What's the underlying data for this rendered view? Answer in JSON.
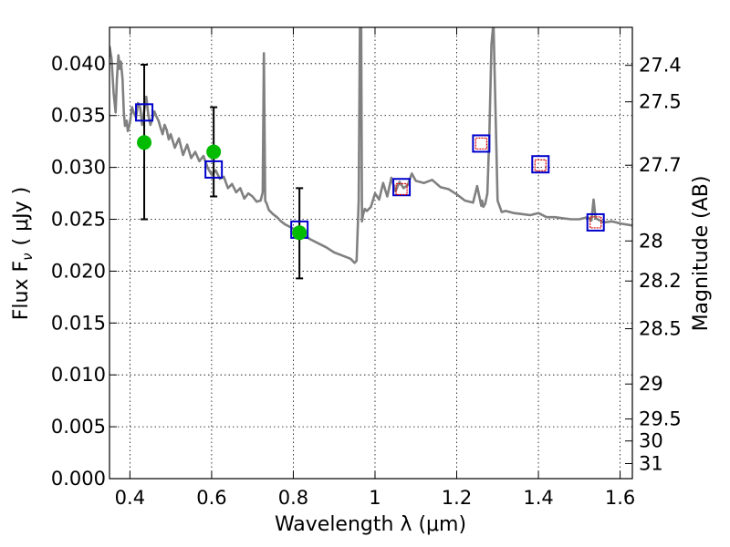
{
  "chart_data": {
    "type": "line",
    "title": "",
    "xlabel": "Wavelength  λ (μm)",
    "ylabel": "Flux  F",
    "ylabel_sub": "ν",
    "ylabel_unit": "( μJy )",
    "ylabel_right": "Magnitude (AB)",
    "xlim": [
      0.35,
      1.63
    ],
    "ylim": [
      0.0,
      0.0435
    ],
    "grid": true,
    "x_ticks": [
      0.4,
      0.6,
      0.8,
      1.0,
      1.2,
      1.4,
      1.6
    ],
    "x_tick_labels": [
      "0.4",
      "0.6",
      "0.8",
      "1",
      "1.2",
      "1.4",
      "1.6"
    ],
    "y_ticks": [
      0.0,
      0.005,
      0.01,
      0.015,
      0.02,
      0.025,
      0.03,
      0.035,
      0.04
    ],
    "y_tick_labels": [
      "0.000",
      "0.005",
      "0.010",
      "0.015",
      "0.020",
      "0.025",
      "0.030",
      "0.035",
      "0.040"
    ],
    "right_ticks": [
      {
        "label": "27.4",
        "flux": 0.03984
      },
      {
        "label": "27.5",
        "flux": 0.03632
      },
      {
        "label": "27.7",
        "flux": 0.03021
      },
      {
        "label": "28",
        "flux": 0.02291
      },
      {
        "label": "28.2",
        "flux": 0.01905
      },
      {
        "label": "28.5",
        "flux": 0.01445
      },
      {
        "label": "29",
        "flux": 0.00912
      },
      {
        "label": "29.5",
        "flux": 0.00575
      },
      {
        "label": "30",
        "flux": 0.00363
      },
      {
        "label": "31",
        "flux": 0.00145
      }
    ],
    "series": [
      {
        "role": "model-spectrum",
        "style": "line",
        "color": "#808080",
        "x": [
          0.35,
          0.355,
          0.36,
          0.365,
          0.368,
          0.372,
          0.375,
          0.378,
          0.382,
          0.385,
          0.388,
          0.392,
          0.395,
          0.4,
          0.405,
          0.41,
          0.415,
          0.42,
          0.425,
          0.43,
          0.435,
          0.44,
          0.445,
          0.45,
          0.455,
          0.46,
          0.465,
          0.47,
          0.475,
          0.48,
          0.485,
          0.49,
          0.495,
          0.5,
          0.51,
          0.52,
          0.53,
          0.54,
          0.55,
          0.56,
          0.57,
          0.58,
          0.59,
          0.6,
          0.61,
          0.62,
          0.63,
          0.64,
          0.65,
          0.66,
          0.67,
          0.68,
          0.69,
          0.7,
          0.71,
          0.72,
          0.725,
          0.728,
          0.731,
          0.735,
          0.74,
          0.75,
          0.76,
          0.77,
          0.78,
          0.79,
          0.8,
          0.82,
          0.84,
          0.86,
          0.88,
          0.9,
          0.92,
          0.94,
          0.95,
          0.955,
          0.96,
          0.963,
          0.966,
          0.968,
          0.971,
          0.975,
          0.98,
          0.99,
          1.0,
          1.01,
          1.02,
          1.03,
          1.04,
          1.05,
          1.06,
          1.07,
          1.08,
          1.09,
          1.1,
          1.12,
          1.14,
          1.16,
          1.18,
          1.2,
          1.22,
          1.24,
          1.25,
          1.26,
          1.262,
          1.265,
          1.27,
          1.275,
          1.28,
          1.285,
          1.29,
          1.3,
          1.31,
          1.32,
          1.34,
          1.36,
          1.38,
          1.4,
          1.42,
          1.44,
          1.46,
          1.48,
          1.5,
          1.52,
          1.53,
          1.535,
          1.54,
          1.55,
          1.56,
          1.58,
          1.6,
          1.63
        ],
        "y": [
          0.0417,
          0.0405,
          0.0372,
          0.0353,
          0.0385,
          0.0408,
          0.0395,
          0.0402,
          0.0385,
          0.0353,
          0.034,
          0.0345,
          0.0335,
          0.0343,
          0.0358,
          0.0352,
          0.0348,
          0.0362,
          0.0358,
          0.0341,
          0.0355,
          0.0368,
          0.0351,
          0.0341,
          0.0347,
          0.0354,
          0.0349,
          0.0345,
          0.0338,
          0.0332,
          0.0341,
          0.0336,
          0.0327,
          0.0332,
          0.0319,
          0.0328,
          0.0312,
          0.0322,
          0.0309,
          0.0315,
          0.0306,
          0.0311,
          0.03,
          0.0293,
          0.0297,
          0.0289,
          0.0291,
          0.028,
          0.0284,
          0.0276,
          0.028,
          0.027,
          0.0275,
          0.0272,
          0.0267,
          0.0268,
          0.0276,
          0.041,
          0.0268,
          0.0265,
          0.0259,
          0.0255,
          0.0252,
          0.0248,
          0.0245,
          0.0243,
          0.0241,
          0.0236,
          0.0231,
          0.0227,
          0.0223,
          0.0218,
          0.0215,
          0.0212,
          0.0208,
          0.021,
          0.0268,
          0.0433,
          0.044,
          0.0248,
          0.0255,
          0.026,
          0.0258,
          0.0262,
          0.0275,
          0.0269,
          0.0285,
          0.0272,
          0.029,
          0.0277,
          0.0286,
          0.028,
          0.0283,
          0.0294,
          0.0287,
          0.0285,
          0.0288,
          0.0281,
          0.0279,
          0.0274,
          0.0268,
          0.0266,
          0.0282,
          0.0263,
          0.0268,
          0.0262,
          0.0265,
          0.0275,
          0.0332,
          0.0419,
          0.044,
          0.0268,
          0.0257,
          0.0258,
          0.0256,
          0.0255,
          0.0254,
          0.0256,
          0.0252,
          0.0252,
          0.0251,
          0.025,
          0.025,
          0.0252,
          0.0249,
          0.0269,
          0.0251,
          0.0249,
          0.0247,
          0.0248,
          0.0246,
          0.0244
        ]
      },
      {
        "role": "model-photometry",
        "style": "open-square",
        "color": "#0000cc",
        "x": [
          0.435,
          0.605,
          0.815,
          1.065,
          1.26,
          1.405,
          1.54
        ],
        "y": [
          0.0353,
          0.0298,
          0.024,
          0.0281,
          0.0323,
          0.0303,
          0.0247
        ]
      },
      {
        "role": "observed-detections",
        "style": "filled-circle",
        "color": "#00bb00",
        "x": [
          0.435,
          0.605,
          0.815
        ],
        "y": [
          0.0324,
          0.0315,
          0.0237
        ],
        "error_low": [
          0.0074,
          0.0043,
          0.0044
        ],
        "error_high": [
          0.0075,
          0.0043,
          0.0043
        ]
      },
      {
        "role": "observed-upper-limits",
        "style": "open-square-dashed",
        "color": "#dd0000",
        "x": [
          1.065,
          1.26,
          1.405,
          1.54
        ],
        "y": [
          0.0279,
          0.0323,
          0.0302,
          0.0247
        ]
      }
    ]
  }
}
